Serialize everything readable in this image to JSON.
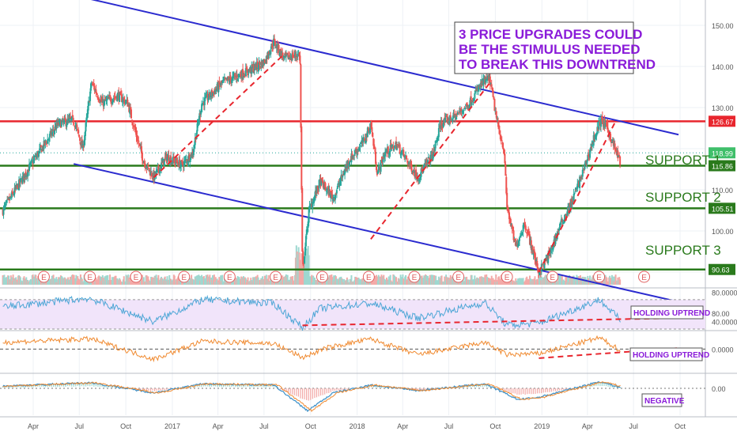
{
  "colors": {
    "background": "#ffffff",
    "grid": "#eef1f5",
    "candle_up": "#26a69a",
    "candle_down": "#ef5350",
    "channel": "#2b2bcf",
    "resistance": "#e8262e",
    "support": "#2a7a1c",
    "trend_dashed": "#e8262e",
    "rsi": "#4da6d6",
    "rsi_band_fill": "#f1e4fa",
    "osc2": "#f08a30",
    "macd": "#3a8fc8",
    "macd_signal": "#f08a30",
    "callout_text": "#8a1bd9",
    "callout_border": "#444444",
    "axis_text": "#555555",
    "earnings_marker": "#e06060"
  },
  "annotations": {
    "headline": [
      "3 PRICE UPGRADES COULD",
      "BE THE STIMULUS NEEDED",
      "TO BREAK THIS DOWNTREND"
    ],
    "support_1": "SUPPORT 1",
    "support_2": "SUPPORT 2",
    "support_3": "SUPPORT 3",
    "rsi_note": "HOLDING UPTREND",
    "osc_note": "HOLDING UPTREND",
    "macd_note": "NEGATIVE",
    "earnings_letter": "E"
  },
  "chart_data": {
    "type": "candlestick",
    "x_labels": [
      "Apr",
      "Jul",
      "Oct",
      "2017",
      "Apr",
      "Jul",
      "Oct",
      "2018",
      "Apr",
      "Jul",
      "Oct",
      "2019",
      "Apr",
      "Jul",
      "Oct"
    ],
    "x_dates": [
      "2016-04-01",
      "2016-07-01",
      "2016-10-01",
      "2017-01-01",
      "2017-04-01",
      "2017-07-01",
      "2017-10-01",
      "2018-01-01",
      "2018-04-01",
      "2018-07-01",
      "2018-10-01",
      "2019-01-01",
      "2019-04-01",
      "2019-07-01",
      "2019-10-01"
    ],
    "price_axis": {
      "ticks": [
        "150.00",
        "140.00",
        "130.00",
        "110.00",
        "100.00",
        "80.00"
      ],
      "ylim": [
        80,
        150
      ]
    },
    "level_tags": [
      {
        "name": "resistance",
        "value": "126.67"
      },
      {
        "name": "last",
        "value": "118.99"
      },
      {
        "name": "support-1",
        "value": "115.86"
      },
      {
        "name": "support-2",
        "value": "105.51"
      },
      {
        "name": "support-3",
        "value": "90.63"
      }
    ],
    "price_anchors": [
      {
        "date": "2016-02-01",
        "close": 105
      },
      {
        "date": "2016-04-01",
        "close": 117
      },
      {
        "date": "2016-05-20",
        "close": 126
      },
      {
        "date": "2016-06-20",
        "close": 127
      },
      {
        "date": "2016-07-08",
        "close": 120
      },
      {
        "date": "2016-07-25",
        "close": 136
      },
      {
        "date": "2016-08-15",
        "close": 131
      },
      {
        "date": "2016-09-15",
        "close": 133
      },
      {
        "date": "2016-10-05",
        "close": 131
      },
      {
        "date": "2016-10-20",
        "close": 124
      },
      {
        "date": "2016-11-05",
        "close": 117
      },
      {
        "date": "2016-11-25",
        "close": 113
      },
      {
        "date": "2016-12-20",
        "close": 118
      },
      {
        "date": "2017-01-20",
        "close": 116
      },
      {
        "date": "2017-02-10",
        "close": 119
      },
      {
        "date": "2017-02-28",
        "close": 131
      },
      {
        "date": "2017-04-10",
        "close": 136
      },
      {
        "date": "2017-06-01",
        "close": 139
      },
      {
        "date": "2017-07-01",
        "close": 141
      },
      {
        "date": "2017-07-20",
        "close": 146
      },
      {
        "date": "2017-08-10",
        "close": 142
      },
      {
        "date": "2017-09-10",
        "close": 143
      },
      {
        "date": "2017-09-15",
        "close": 90
      },
      {
        "date": "2017-09-28",
        "close": 105
      },
      {
        "date": "2017-10-20",
        "close": 112
      },
      {
        "date": "2017-11-15",
        "close": 108
      },
      {
        "date": "2017-12-15",
        "close": 117
      },
      {
        "date": "2018-01-15",
        "close": 122
      },
      {
        "date": "2018-01-28",
        "close": 126
      },
      {
        "date": "2018-02-10",
        "close": 114
      },
      {
        "date": "2018-02-25",
        "close": 119
      },
      {
        "date": "2018-03-20",
        "close": 121
      },
      {
        "date": "2018-04-10",
        "close": 117
      },
      {
        "date": "2018-05-01",
        "close": 113
      },
      {
        "date": "2018-06-01",
        "close": 119
      },
      {
        "date": "2018-06-15",
        "close": 126
      },
      {
        "date": "2018-07-15",
        "close": 128
      },
      {
        "date": "2018-08-10",
        "close": 131
      },
      {
        "date": "2018-09-05",
        "close": 136
      },
      {
        "date": "2018-09-20",
        "close": 137
      },
      {
        "date": "2018-10-05",
        "close": 126
      },
      {
        "date": "2018-10-18",
        "close": 120
      },
      {
        "date": "2018-10-24",
        "close": 106
      },
      {
        "date": "2018-11-10",
        "close": 96
      },
      {
        "date": "2018-11-28",
        "close": 102
      },
      {
        "date": "2018-12-12",
        "close": 96
      },
      {
        "date": "2018-12-26",
        "close": 90
      },
      {
        "date": "2019-01-15",
        "close": 94
      },
      {
        "date": "2019-02-05",
        "close": 101
      },
      {
        "date": "2019-03-01",
        "close": 107
      },
      {
        "date": "2019-03-25",
        "close": 115
      },
      {
        "date": "2019-04-15",
        "close": 123
      },
      {
        "date": "2019-04-28",
        "close": 127
      },
      {
        "date": "2019-05-10",
        "close": 125
      },
      {
        "date": "2019-05-28",
        "close": 119
      },
      {
        "date": "2019-06-05",
        "close": 117
      }
    ],
    "earnings_dates": [
      "2016-04-22",
      "2016-07-22",
      "2016-10-21",
      "2017-01-24",
      "2017-04-24",
      "2017-07-24",
      "2017-10-24",
      "2018-01-24",
      "2018-04-24",
      "2018-07-20",
      "2018-10-24",
      "2019-01-22",
      "2019-04-24",
      "2019-07-22"
    ],
    "channel": {
      "upper": [
        {
          "date": "2016-07-01",
          "price": 157
        },
        {
          "date": "2019-06-05",
          "price": 126.67
        }
      ],
      "lower": [
        {
          "date": "2016-07-01",
          "price": 116
        },
        {
          "date": "2019-06-05",
          "price": 86
        }
      ]
    },
    "horizontal_levels": [
      {
        "name": "resistance",
        "price": 126.67
      },
      {
        "name": "support-1",
        "price": 115.86
      },
      {
        "name": "support-2",
        "price": 105.51
      },
      {
        "name": "support-3",
        "price": 90.63
      }
    ],
    "dashed_trendlines": [
      {
        "name": "uptrend-2016-2017",
        "from": {
          "date": "2016-11-25",
          "price": 113
        },
        "to": {
          "date": "2017-08-10",
          "price": 143
        }
      },
      {
        "name": "uptrend-2017-2018",
        "from": {
          "date": "2018-01-28",
          "price": 98
        },
        "to": {
          "date": "2018-09-20",
          "price": 136
        }
      },
      {
        "name": "uptrend-2019",
        "from": {
          "date": "2018-12-26",
          "price": 90
        },
        "to": {
          "date": "2019-05-28",
          "price": 127
        }
      }
    ],
    "rsi_panel": {
      "ticks": [
        "80.0000",
        "40.0000"
      ],
      "ylim": [
        30,
        85
      ],
      "band": [
        70,
        30
      ],
      "anchors": [
        {
          "date": "2016-02-01",
          "value": 60
        },
        {
          "date": "2016-07-20",
          "value": 72
        },
        {
          "date": "2016-11-25",
          "value": 40
        },
        {
          "date": "2017-03-01",
          "value": 70
        },
        {
          "date": "2017-07-20",
          "value": 65
        },
        {
          "date": "2017-09-15",
          "value": 32
        },
        {
          "date": "2017-10-20",
          "value": 58
        },
        {
          "date": "2018-01-28",
          "value": 65
        },
        {
          "date": "2018-05-01",
          "value": 45
        },
        {
          "date": "2018-09-10",
          "value": 66
        },
        {
          "date": "2018-10-24",
          "value": 35
        },
        {
          "date": "2018-12-26",
          "value": 38
        },
        {
          "date": "2019-04-25",
          "value": 70
        },
        {
          "date": "2019-06-05",
          "value": 42
        }
      ],
      "trendline": {
        "from": {
          "date": "2017-09-15",
          "value": 35
        },
        "to": {
          "date": "2019-10-01",
          "value": 45
        }
      }
    },
    "osc_panel": {
      "ticks": [
        "0.0000"
      ],
      "ylim": [
        -40,
        30
      ],
      "anchors": [
        {
          "date": "2016-02-01",
          "value": 12
        },
        {
          "date": "2016-07-25",
          "value": 18
        },
        {
          "date": "2016-11-25",
          "value": -18
        },
        {
          "date": "2017-03-01",
          "value": 14
        },
        {
          "date": "2017-07-20",
          "value": 10
        },
        {
          "date": "2017-09-15",
          "value": -15
        },
        {
          "date": "2017-11-01",
          "value": 2
        },
        {
          "date": "2018-01-28",
          "value": 18
        },
        {
          "date": "2018-05-01",
          "value": -10
        },
        {
          "date": "2018-09-10",
          "value": 12
        },
        {
          "date": "2018-10-24",
          "value": -10
        },
        {
          "date": "2018-12-26",
          "value": -8
        },
        {
          "date": "2019-04-25",
          "value": 20
        },
        {
          "date": "2019-06-05",
          "value": -2
        }
      ],
      "trendline": {
        "from": {
          "date": "2018-12-26",
          "value": -16
        },
        "to": {
          "date": "2019-10-01",
          "value": 2
        }
      }
    },
    "macd_panel": {
      "ticks": [
        "0.00"
      ],
      "ylim": [
        -12,
        6
      ],
      "anchors": [
        {
          "date": "2016-02-01",
          "value": 1
        },
        {
          "date": "2016-07-25",
          "value": 2.5
        },
        {
          "date": "2016-11-25",
          "value": -2
        },
        {
          "date": "2017-03-01",
          "value": 2
        },
        {
          "date": "2017-07-20",
          "value": 1.5
        },
        {
          "date": "2017-09-25",
          "value": -10
        },
        {
          "date": "2017-11-15",
          "value": -2
        },
        {
          "date": "2018-01-28",
          "value": 1.5
        },
        {
          "date": "2018-05-01",
          "value": -1
        },
        {
          "date": "2018-09-10",
          "value": 2
        },
        {
          "date": "2018-11-15",
          "value": -5
        },
        {
          "date": "2018-12-26",
          "value": -4
        },
        {
          "date": "2019-04-25",
          "value": 3
        },
        {
          "date": "2019-06-05",
          "value": 0.5
        }
      ]
    }
  }
}
